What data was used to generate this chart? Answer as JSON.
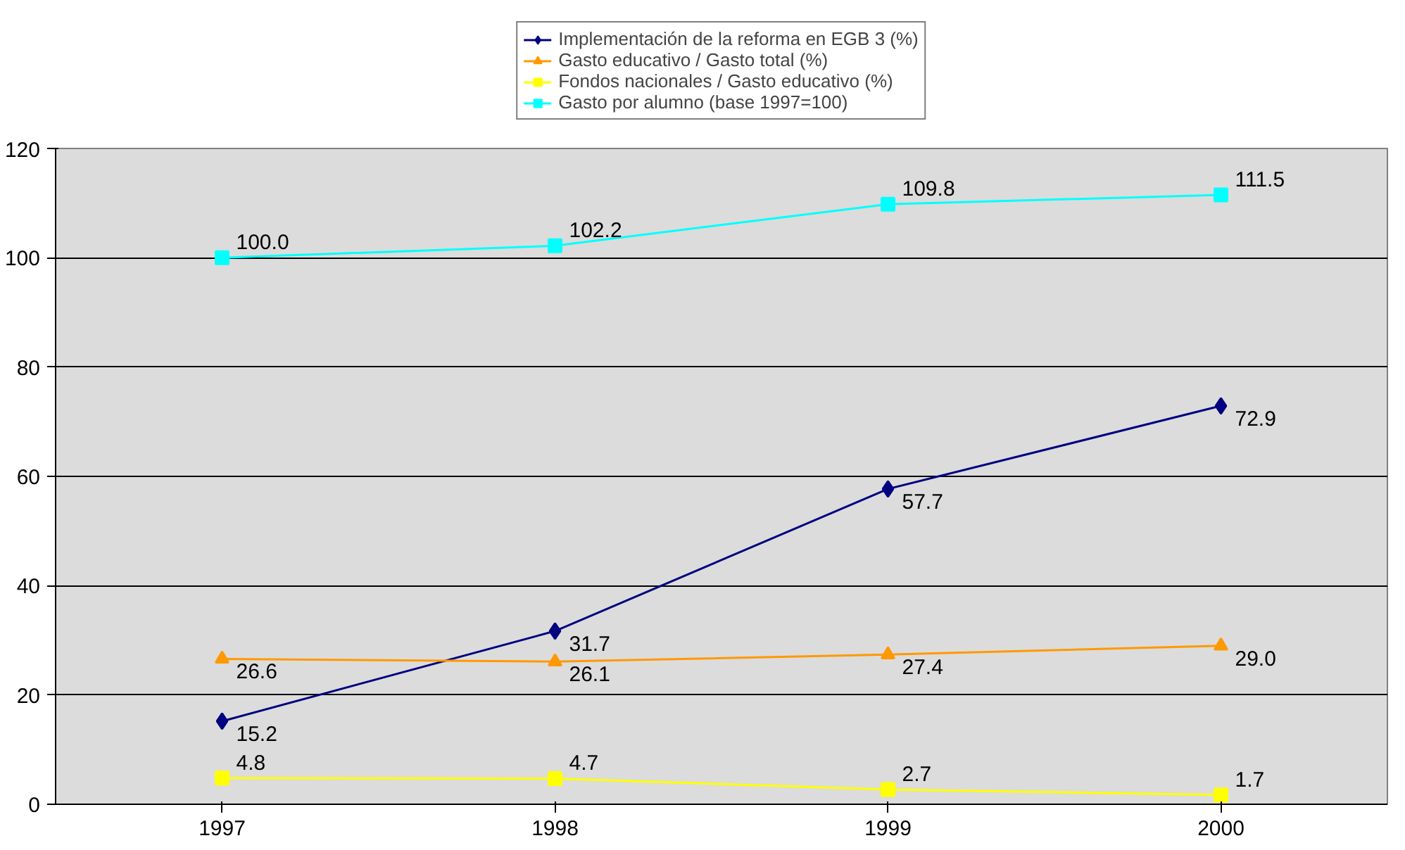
{
  "chart_data": {
    "type": "line",
    "categories": [
      "1997",
      "1998",
      "1999",
      "2000"
    ],
    "ylim": [
      0,
      120
    ],
    "yticks": [
      0,
      20,
      40,
      60,
      80,
      100,
      120
    ],
    "grid": "y",
    "legend": "top",
    "data_labels": true,
    "series": [
      {
        "name": "Implementación de la reforma en EGB 3 (%)",
        "color": "#000080",
        "marker": "diamond",
        "values": [
          15.2,
          31.7,
          57.7,
          72.9
        ],
        "value_labels": [
          "15.2",
          "31.7",
          "57.7",
          "72.9"
        ]
      },
      {
        "name": "Gasto educativo / Gasto total (%)",
        "color": "#ff9900",
        "marker": "triangle",
        "values": [
          26.6,
          26.1,
          27.4,
          29.0
        ],
        "value_labels": [
          "26.6",
          "26.1",
          "27.4",
          "29.0"
        ]
      },
      {
        "name": "Fondos nacionales / Gasto educativo (%)",
        "color": "#ffff00",
        "marker": "square",
        "values": [
          4.8,
          4.7,
          2.7,
          1.7
        ],
        "value_labels": [
          "4.8",
          "4.7",
          "2.7",
          "1.7"
        ]
      },
      {
        "name": "Gasto por alumno (base 1997=100)",
        "color": "#00ffff",
        "marker": "square",
        "values": [
          100.0,
          102.2,
          109.8,
          111.5
        ],
        "value_labels": [
          "100.0",
          "102.2",
          "109.8",
          "111.5"
        ]
      }
    ]
  }
}
